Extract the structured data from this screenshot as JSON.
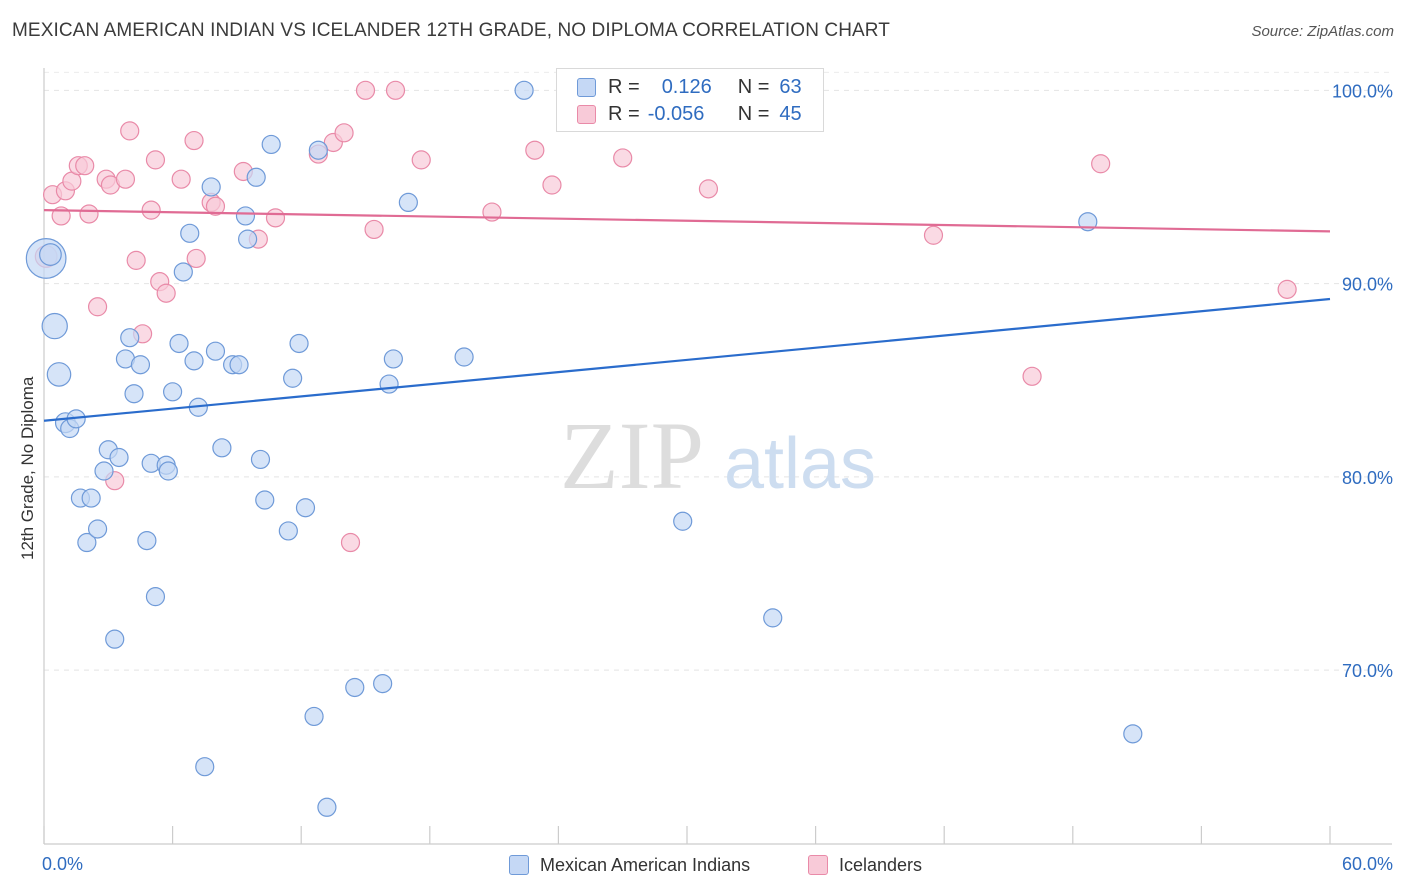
{
  "title": "MEXICAN AMERICAN INDIAN VS ICELANDER 12TH GRADE, NO DIPLOMA CORRELATION CHART",
  "source": "Source: ZipAtlas.com",
  "legend_stats": {
    "rows": [
      {
        "r_label": "R =",
        "r_value": "0.126",
        "n_label": "N =",
        "n_value": "63"
      },
      {
        "r_label": "R =",
        "r_value": "-0.056",
        "n_label": "N =",
        "n_value": "45"
      }
    ]
  },
  "watermark": {
    "zip": "ZIP",
    "atlas": "atlas"
  },
  "chart_data": {
    "type": "scatter",
    "title": "MEXICAN AMERICAN INDIAN VS ICELANDER 12TH GRADE, NO DIPLOMA CORRELATION CHART",
    "xlabel": "",
    "ylabel": "12th Grade, No Diploma",
    "xlim": [
      0,
      60
    ],
    "ylim": [
      61,
      102.5
    ],
    "x_tick_labels": [
      "0.0%",
      "60.0%"
    ],
    "y_ticks": [
      70,
      80,
      90,
      100
    ],
    "y_tick_labels": [
      "70.0%",
      "80.0%",
      "90.0%",
      "100.0%"
    ],
    "grid": true,
    "legend_placement": "bottom",
    "colors": {
      "blue": "#2f6cc0",
      "blue_fill": "#c5d8f5",
      "pink": "#e06b94",
      "pink_fill": "#f8cad8"
    },
    "series": [
      {
        "name": "Mexican American Indians",
        "color": "#2f6cc0",
        "trend": {
          "x": [
            0,
            60
          ],
          "y": [
            82.9,
            89.2
          ]
        },
        "points": [
          [
            0.1,
            91.3,
            2.2
          ],
          [
            0.5,
            87.8,
            1.4
          ],
          [
            0.7,
            85.3,
            1.3
          ],
          [
            1.0,
            82.8,
            1.1
          ],
          [
            1.2,
            82.5,
            1.0
          ],
          [
            1.5,
            83.0,
            1.0
          ],
          [
            1.7,
            78.9,
            1.0
          ],
          [
            2.0,
            76.6,
            1.0
          ],
          [
            2.2,
            78.9,
            1.0
          ],
          [
            2.5,
            77.3,
            1.0
          ],
          [
            2.8,
            80.3,
            1.0
          ],
          [
            3.0,
            81.4,
            1.0
          ],
          [
            3.3,
            71.6,
            1.0
          ],
          [
            3.5,
            81.0,
            1.0
          ],
          [
            3.8,
            86.1,
            1.0
          ],
          [
            4.0,
            87.2,
            1.0
          ],
          [
            4.2,
            84.3,
            1.0
          ],
          [
            4.5,
            85.8,
            1.0
          ],
          [
            4.8,
            76.7,
            1.0
          ],
          [
            5.0,
            80.7,
            1.0
          ],
          [
            5.2,
            73.8,
            1.0
          ],
          [
            5.7,
            80.6,
            1.0
          ],
          [
            5.8,
            80.3,
            1.0
          ],
          [
            6.0,
            84.4,
            1.0
          ],
          [
            6.3,
            86.9,
            1.0
          ],
          [
            6.5,
            90.6,
            1.0
          ],
          [
            6.8,
            92.6,
            1.0
          ],
          [
            7.0,
            86.0,
            1.0
          ],
          [
            7.2,
            83.6,
            1.0
          ],
          [
            7.5,
            65.0,
            1.0
          ],
          [
            7.8,
            95.0,
            1.0
          ],
          [
            8.0,
            86.5,
            1.0
          ],
          [
            8.3,
            81.5,
            1.0
          ],
          [
            8.8,
            85.8,
            1.0
          ],
          [
            9.1,
            85.8,
            1.0
          ],
          [
            9.4,
            93.5,
            1.0
          ],
          [
            9.5,
            92.3,
            1.0
          ],
          [
            9.9,
            95.5,
            1.0
          ],
          [
            10.1,
            80.9,
            1.0
          ],
          [
            10.3,
            78.8,
            1.0
          ],
          [
            10.6,
            97.2,
            1.0
          ],
          [
            11.4,
            77.2,
            1.0
          ],
          [
            11.6,
            85.1,
            1.0
          ],
          [
            11.9,
            86.9,
            1.0
          ],
          [
            12.2,
            78.4,
            1.0
          ],
          [
            12.6,
            67.6,
            1.0
          ],
          [
            12.8,
            96.9,
            1.0
          ],
          [
            13.2,
            62.9,
            1.0
          ],
          [
            14.5,
            69.1,
            1.0
          ],
          [
            15.8,
            69.3,
            1.0
          ],
          [
            16.1,
            84.8,
            1.0
          ],
          [
            16.3,
            86.1,
            1.0
          ],
          [
            17.0,
            94.2,
            1.0
          ],
          [
            19.6,
            86.2,
            1.0
          ],
          [
            22.4,
            100.0,
            1.0
          ],
          [
            25.6,
            100.0,
            1.0
          ],
          [
            27.0,
            100.0,
            1.0
          ],
          [
            29.6,
            100.0,
            1.0
          ],
          [
            29.8,
            77.7,
            1.0
          ],
          [
            34.0,
            72.7,
            1.0
          ],
          [
            48.7,
            93.2,
            1.0
          ],
          [
            50.8,
            66.7,
            1.0
          ],
          [
            0.3,
            91.5,
            1.2
          ]
        ]
      },
      {
        "name": "Icelanders",
        "color": "#e06b94",
        "trend": {
          "x": [
            0,
            60
          ],
          "y": [
            93.8,
            92.7
          ]
        },
        "points": [
          [
            0.4,
            94.6,
            1.0
          ],
          [
            0.8,
            93.5,
            1.0
          ],
          [
            1.0,
            94.8,
            1.0
          ],
          [
            1.3,
            95.3,
            1.0
          ],
          [
            1.6,
            96.1,
            1.0
          ],
          [
            1.9,
            96.1,
            1.0
          ],
          [
            2.1,
            93.6,
            1.0
          ],
          [
            2.5,
            88.8,
            1.0
          ],
          [
            2.9,
            95.4,
            1.0
          ],
          [
            3.1,
            95.1,
            1.0
          ],
          [
            3.3,
            79.8,
            1.0
          ],
          [
            3.8,
            95.4,
            1.0
          ],
          [
            4.0,
            97.9,
            1.0
          ],
          [
            4.3,
            91.2,
            1.0
          ],
          [
            4.6,
            87.4,
            1.0
          ],
          [
            5.0,
            93.8,
            1.0
          ],
          [
            5.2,
            96.4,
            1.0
          ],
          [
            5.4,
            90.1,
            1.0
          ],
          [
            5.7,
            89.5,
            1.0
          ],
          [
            6.4,
            95.4,
            1.0
          ],
          [
            7.0,
            97.4,
            1.0
          ],
          [
            7.1,
            91.3,
            1.0
          ],
          [
            7.8,
            94.2,
            1.0
          ],
          [
            8.0,
            94.0,
            1.0
          ],
          [
            9.3,
            95.8,
            1.0
          ],
          [
            10.0,
            92.3,
            1.0
          ],
          [
            10.8,
            93.4,
            1.0
          ],
          [
            12.8,
            96.7,
            1.0
          ],
          [
            13.5,
            97.3,
            1.0
          ],
          [
            14.0,
            97.8,
            1.0
          ],
          [
            14.3,
            76.6,
            1.0
          ],
          [
            15.0,
            100.0,
            1.0
          ],
          [
            15.4,
            92.8,
            1.0
          ],
          [
            16.4,
            100.0,
            1.0
          ],
          [
            17.6,
            96.4,
            1.0
          ],
          [
            20.9,
            93.7,
            1.0
          ],
          [
            22.9,
            96.9,
            1.0
          ],
          [
            23.7,
            95.1,
            1.0
          ],
          [
            27.0,
            96.5,
            1.0
          ],
          [
            31.0,
            94.9,
            1.0
          ],
          [
            41.5,
            92.5,
            1.0
          ],
          [
            46.1,
            85.2,
            1.0
          ],
          [
            49.3,
            96.2,
            1.0
          ],
          [
            58.0,
            89.7,
            1.0
          ],
          [
            0.1,
            91.4,
            1.2
          ]
        ]
      }
    ]
  }
}
